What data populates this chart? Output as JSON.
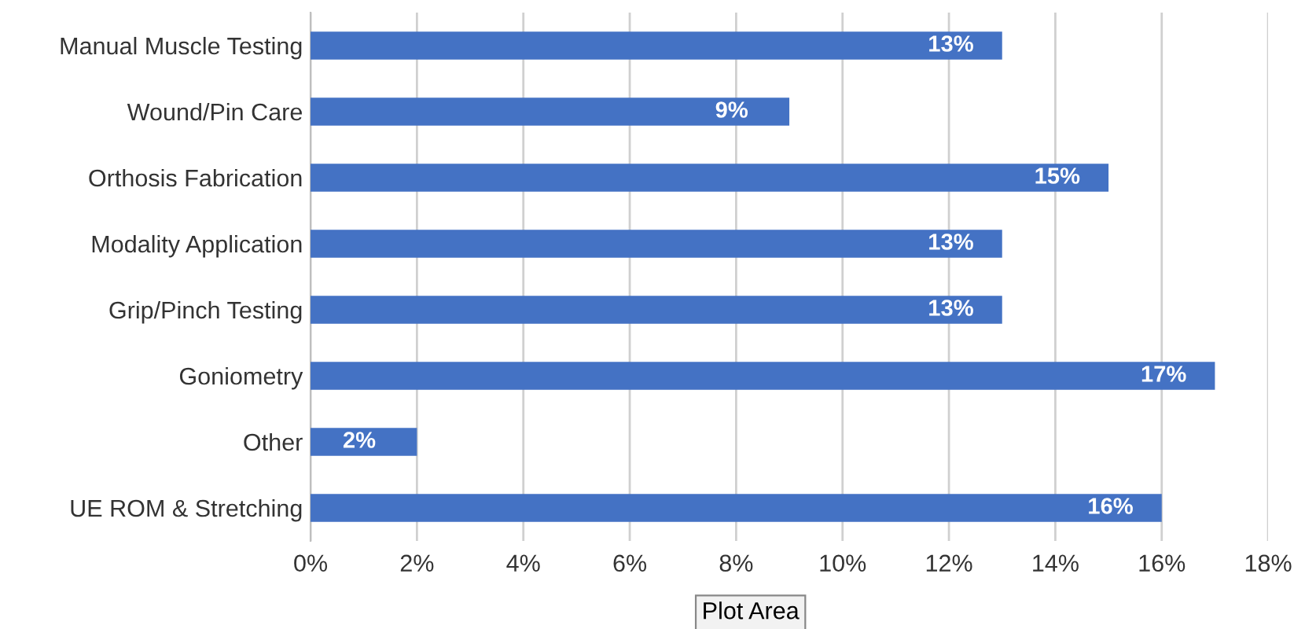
{
  "chart_data": {
    "type": "bar",
    "orientation": "horizontal",
    "categories": [
      "Manual Muscle Testing",
      "Wound/Pin Care",
      "Orthosis Fabrication",
      "Modality Application",
      "Grip/Pinch Testing",
      "Goniometry",
      "Other",
      "UE ROM & Stretching"
    ],
    "values": [
      13,
      9,
      15,
      13,
      13,
      17,
      2,
      16
    ],
    "color": "#4472c4",
    "value_labels": [
      "13%",
      "9%",
      "15%",
      "13%",
      "13%",
      "17%",
      "2%",
      "16%"
    ],
    "xlim": [
      0,
      18
    ],
    "xticks": [
      {
        "value": 0,
        "label": "0%"
      },
      {
        "value": 2,
        "label": "2%"
      },
      {
        "value": 4,
        "label": "4%"
      },
      {
        "value": 6,
        "label": "6%"
      },
      {
        "value": 8,
        "label": "8%"
      },
      {
        "value": 10,
        "label": "10%"
      },
      {
        "value": 12,
        "label": "12%"
      },
      {
        "value": 14,
        "label": "14%"
      },
      {
        "value": 16,
        "label": "16%"
      },
      {
        "value": 18,
        "label": "18%"
      }
    ],
    "grid": "x",
    "legend": false,
    "annotations": [
      "Plot Area"
    ]
  }
}
